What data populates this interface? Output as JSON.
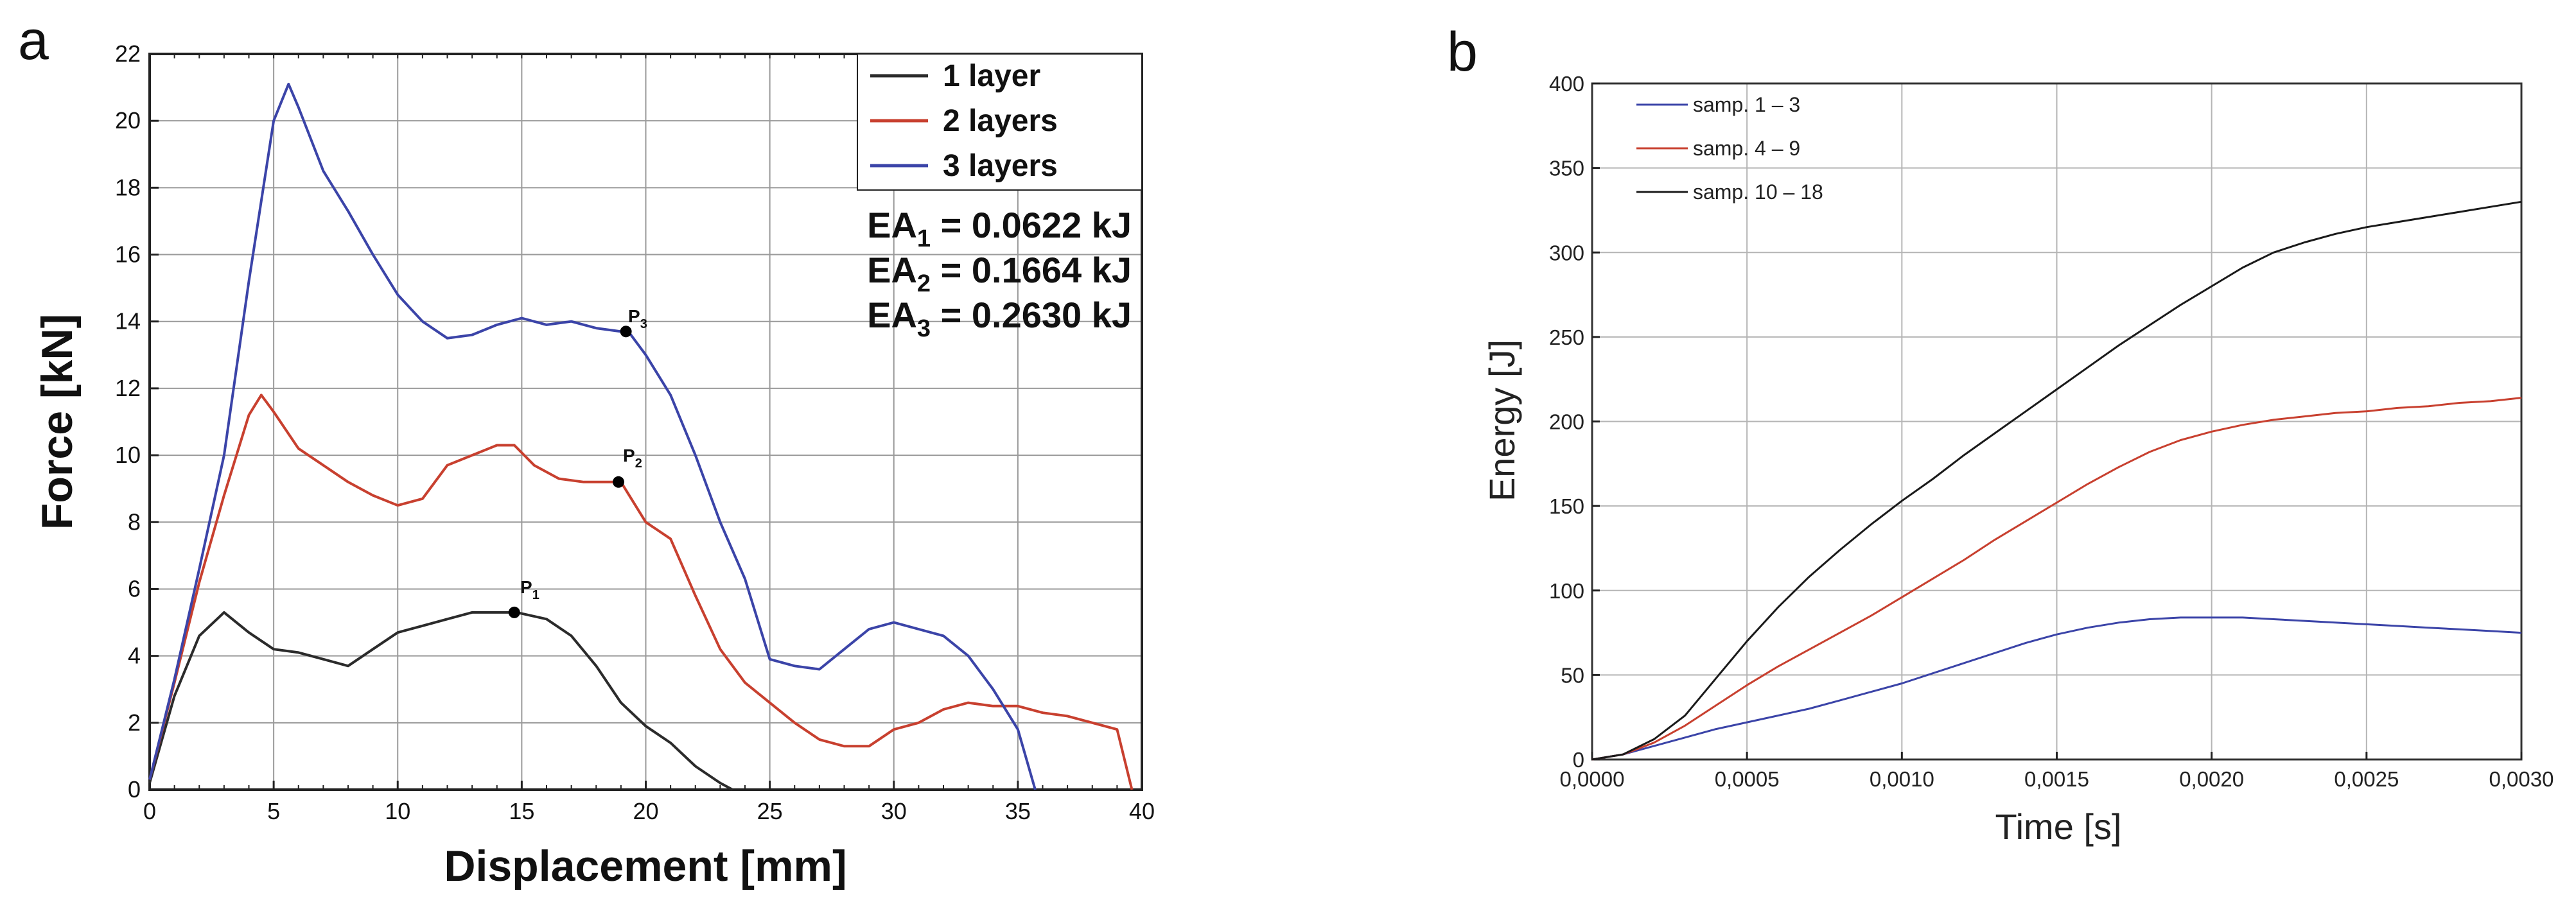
{
  "chart_data": [
    {
      "panel": "a",
      "type": "line",
      "xlabel": "Displacement [mm]",
      "ylabel": "Force [kN]",
      "xlim": [
        0,
        40
      ],
      "ylim": [
        0,
        22
      ],
      "xticks": [
        0,
        5,
        10,
        15,
        20,
        25,
        30,
        35,
        40
      ],
      "yticks": [
        0,
        2,
        4,
        6,
        8,
        10,
        12,
        14,
        16,
        18,
        20,
        22
      ],
      "grid": true,
      "legend_position": "top-right",
      "series": [
        {
          "name": "1 layer",
          "color": "#2b2b2b",
          "x": [
            0,
            1,
            2,
            3,
            4,
            5,
            6,
            7,
            8,
            9,
            10,
            11,
            12,
            13,
            14,
            14.8,
            16,
            17,
            18,
            19,
            20,
            21,
            22,
            23,
            23.5
          ],
          "y": [
            0.2,
            2.8,
            4.6,
            5.3,
            4.7,
            4.2,
            4.1,
            3.9,
            3.7,
            4.2,
            4.7,
            4.9,
            5.1,
            5.3,
            5.3,
            5.3,
            5.1,
            4.6,
            3.7,
            2.6,
            1.9,
            1.4,
            0.7,
            0.2,
            0
          ]
        },
        {
          "name": "2 layers",
          "color": "#c8402f",
          "x": [
            0,
            1,
            2,
            3,
            4,
            4.5,
            5,
            6,
            7,
            8,
            9,
            10,
            11,
            12,
            13,
            14,
            14.7,
            15.5,
            16.5,
            17.5,
            18.5,
            19,
            20,
            21,
            22,
            23,
            24,
            25,
            26,
            27,
            28,
            29,
            30,
            31,
            32,
            33,
            34,
            35,
            36,
            37,
            38,
            39,
            39.6
          ],
          "y": [
            0.3,
            3.2,
            6.2,
            8.8,
            11.2,
            11.8,
            11.3,
            10.2,
            9.7,
            9.2,
            8.8,
            8.5,
            8.7,
            9.7,
            10.0,
            10.3,
            10.3,
            9.7,
            9.3,
            9.2,
            9.2,
            9.2,
            8.0,
            7.5,
            5.8,
            4.2,
            3.2,
            2.6,
            2.0,
            1.5,
            1.3,
            1.3,
            1.8,
            2.0,
            2.4,
            2.6,
            2.5,
            2.5,
            2.3,
            2.2,
            2.0,
            1.8,
            0
          ]
        },
        {
          "name": "3 layers",
          "color": "#3b44a8",
          "x": [
            0,
            1,
            2,
            3,
            4,
            5,
            5.6,
            6,
            7,
            8,
            9,
            10,
            11,
            12,
            13,
            14,
            15,
            16,
            17,
            18,
            19,
            19.3,
            20,
            21,
            22,
            23,
            24,
            25,
            26,
            27,
            28,
            29,
            30,
            31,
            32,
            33,
            34,
            35,
            35.7
          ],
          "y": [
            0.3,
            3.3,
            6.6,
            10.0,
            15.2,
            20.0,
            21.1,
            20.4,
            18.5,
            17.3,
            16.0,
            14.8,
            14.0,
            13.5,
            13.6,
            13.9,
            14.1,
            13.9,
            14.0,
            13.8,
            13.7,
            13.7,
            13.0,
            11.8,
            10.0,
            8.0,
            6.3,
            3.9,
            3.7,
            3.6,
            4.2,
            4.8,
            5.0,
            4.8,
            4.6,
            4.0,
            3.0,
            1.8,
            0
          ]
        }
      ],
      "annotations": [
        {
          "label": "P1",
          "x": 14.7,
          "y": 5.3
        },
        {
          "label": "P2",
          "x": 18.9,
          "y": 9.2
        },
        {
          "label": "P3",
          "x": 19.2,
          "y": 13.7
        }
      ],
      "energy_labels": [
        "EA1 = 0.0622 kJ",
        "EA2 = 0.1664 kJ",
        "EA3 = 0.2630 kJ"
      ]
    },
    {
      "panel": "b",
      "type": "line",
      "xlabel": "Time [s]",
      "ylabel": "Energy [J]",
      "xlim": [
        0,
        0.003
      ],
      "ylim": [
        0,
        400
      ],
      "xticks": [
        0,
        0.0005,
        0.001,
        0.0015,
        0.002,
        0.0025,
        0.003
      ],
      "xtick_labels": [
        "0,0000",
        "0,0005",
        "0,0010",
        "0,0015",
        "0,0020",
        "0,0025",
        "0,0030"
      ],
      "yticks": [
        0,
        50,
        100,
        150,
        200,
        250,
        300,
        350,
        400
      ],
      "grid": true,
      "legend_position": "top-left",
      "series": [
        {
          "name": "samp. 1 – 3",
          "color": "#3b44a8",
          "x": [
            0,
            0.0001,
            0.0002,
            0.0003,
            0.0004,
            0.0005,
            0.0006,
            0.0007,
            0.0008,
            0.0009,
            0.001,
            0.0011,
            0.0012,
            0.0013,
            0.0014,
            0.0015,
            0.0016,
            0.0017,
            0.0018,
            0.0019,
            0.002,
            0.0021,
            0.0022,
            0.0023,
            0.0024,
            0.0025,
            0.0026,
            0.0027,
            0.0028,
            0.0029,
            0.003
          ],
          "y": [
            0,
            3,
            8,
            13,
            18,
            22,
            26,
            30,
            35,
            40,
            45,
            51,
            57,
            63,
            69,
            74,
            78,
            81,
            83,
            84,
            84,
            84,
            83,
            82,
            81,
            80,
            79,
            78,
            77,
            76,
            75
          ]
        },
        {
          "name": "samp. 4 – 9",
          "color": "#c8402f",
          "x": [
            0,
            0.0001,
            0.0002,
            0.0003,
            0.0004,
            0.0005,
            0.0006,
            0.0007,
            0.0008,
            0.0009,
            0.001,
            0.0011,
            0.0012,
            0.0013,
            0.0014,
            0.0015,
            0.0016,
            0.0017,
            0.0018,
            0.0019,
            0.002,
            0.0021,
            0.0022,
            0.0023,
            0.0024,
            0.0025,
            0.0026,
            0.0027,
            0.0028,
            0.0029,
            0.003
          ],
          "y": [
            0,
            3,
            10,
            20,
            32,
            44,
            55,
            65,
            75,
            85,
            96,
            107,
            118,
            130,
            141,
            152,
            163,
            173,
            182,
            189,
            194,
            198,
            201,
            203,
            205,
            206,
            208,
            209,
            211,
            212,
            214
          ]
        },
        {
          "name": "samp. 10 – 18",
          "color": "#1a1a1a",
          "x": [
            0,
            0.0001,
            0.0002,
            0.0003,
            0.0004,
            0.0005,
            0.0006,
            0.0007,
            0.0008,
            0.0009,
            0.001,
            0.0011,
            0.0012,
            0.0013,
            0.0014,
            0.0015,
            0.0016,
            0.0017,
            0.0018,
            0.0019,
            0.002,
            0.0021,
            0.0022,
            0.0023,
            0.0024,
            0.0025,
            0.0026,
            0.0027,
            0.0028,
            0.0029,
            0.003
          ],
          "y": [
            0,
            3,
            12,
            26,
            48,
            70,
            90,
            108,
            124,
            139,
            153,
            166,
            180,
            193,
            206,
            219,
            232,
            245,
            257,
            269,
            280,
            291,
            300,
            306,
            311,
            315,
            318,
            321,
            324,
            327,
            330
          ]
        }
      ]
    }
  ],
  "panels": {
    "a": {
      "label": "a",
      "xlabel": "Displacement [mm]",
      "ylabel": "Force [kN]",
      "xtick_labels": [
        "0",
        "5",
        "10",
        "15",
        "20",
        "25",
        "30",
        "35",
        "40"
      ],
      "ytick_labels": [
        "0",
        "2",
        "4",
        "6",
        "8",
        "10",
        "12",
        "14",
        "16",
        "18",
        "20",
        "22"
      ],
      "legend": [
        "1 layer",
        "2 layers",
        "3 layers"
      ],
      "ea": [
        {
          "base": "EA",
          "sub": "1",
          "rest": " = 0.0622 kJ"
        },
        {
          "base": "EA",
          "sub": "2",
          "rest": " = 0.1664 kJ"
        },
        {
          "base": "EA",
          "sub": "3",
          "rest": " = 0.2630 kJ"
        }
      ],
      "points": [
        {
          "base": "P",
          "sub": "1"
        },
        {
          "base": "P",
          "sub": "2"
        },
        {
          "base": "P",
          "sub": "3"
        }
      ]
    },
    "b": {
      "label": "b",
      "xlabel": "Time [s]",
      "ylabel": "Energy [J]",
      "xtick_labels": [
        "0,0000",
        "0,0005",
        "0,0010",
        "0,0015",
        "0,0020",
        "0,0025",
        "0,0030"
      ],
      "ytick_labels": [
        "0",
        "50",
        "100",
        "150",
        "200",
        "250",
        "300",
        "350",
        "400"
      ],
      "legend": [
        "samp. 1 – 3",
        "samp. 4 – 9",
        "samp. 10 – 18"
      ]
    }
  }
}
